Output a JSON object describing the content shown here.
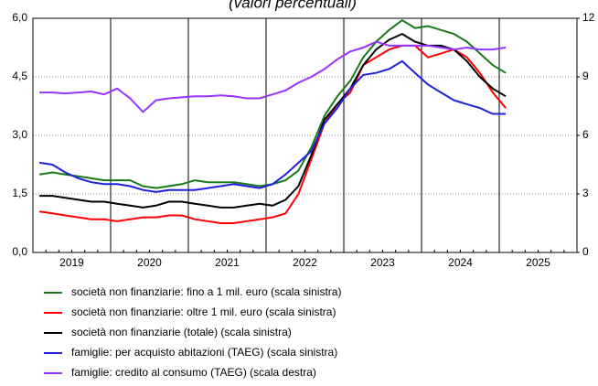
{
  "chart_data": {
    "type": "line",
    "title": "(valori percentuali)",
    "categories": [
      null,
      null,
      null,
      "2019",
      null,
      null,
      null,
      null,
      null,
      "2020",
      null,
      null,
      null,
      null,
      null,
      "2021",
      null,
      null,
      null,
      null,
      null,
      "2022",
      null,
      null,
      null,
      null,
      null,
      "2023",
      null,
      null,
      null,
      null,
      null,
      "2024",
      null,
      null,
      null,
      null,
      null,
      "2025",
      null,
      null
    ],
    "ylim": [
      0,
      6
    ],
    "yticks": [
      {
        "value": 0,
        "label": "0,0"
      },
      {
        "value": 1.5,
        "label": "1,5"
      },
      {
        "value": 3,
        "label": "3,0"
      },
      {
        "value": 4.5,
        "label": "4,5"
      },
      {
        "value": 6,
        "label": "6,0"
      }
    ],
    "y2lim": [
      0,
      12
    ],
    "y2ticks": [
      0,
      3,
      6,
      9,
      12
    ],
    "grid": true,
    "series": [
      {
        "name": "società non finanziarie: fino a 1 mil. euro (scala sinistra)",
        "color": "#1a7a1a",
        "values": [
          2.0,
          2.05,
          2.0,
          1.95,
          1.9,
          1.85,
          1.85,
          1.85,
          1.7,
          1.65,
          1.7,
          1.75,
          1.85,
          1.8,
          1.8,
          1.8,
          1.75,
          1.7,
          1.75,
          1.85,
          2.1,
          2.7,
          3.5,
          4.0,
          4.4,
          5.0,
          5.4,
          5.7,
          5.95,
          5.75,
          5.8,
          5.7,
          5.6,
          5.4,
          5.1,
          4.8,
          4.6,
          null,
          null,
          null,
          null,
          null
        ]
      },
      {
        "name": "società non finanziarie: oltre 1 mil. euro (scala sinistra)",
        "color": "#ff0000",
        "values": [
          1.05,
          1.0,
          0.95,
          0.9,
          0.85,
          0.85,
          0.8,
          0.85,
          0.9,
          0.9,
          0.95,
          0.95,
          0.85,
          0.8,
          0.75,
          0.75,
          0.8,
          0.85,
          0.9,
          1.0,
          1.5,
          2.4,
          3.3,
          3.8,
          4.1,
          4.8,
          5.0,
          5.2,
          5.3,
          5.3,
          5.0,
          5.1,
          5.2,
          5.0,
          4.6,
          4.1,
          3.7,
          null,
          null,
          null,
          null,
          null
        ]
      },
      {
        "name": "società non finanziarie (totale) (scala sinistra)",
        "color": "#000000",
        "values": [
          1.45,
          1.45,
          1.4,
          1.35,
          1.3,
          1.3,
          1.25,
          1.2,
          1.15,
          1.2,
          1.3,
          1.3,
          1.25,
          1.2,
          1.15,
          1.15,
          1.2,
          1.25,
          1.2,
          1.35,
          1.7,
          2.5,
          3.4,
          3.8,
          4.2,
          4.8,
          5.2,
          5.45,
          5.6,
          5.4,
          5.3,
          5.3,
          5.2,
          4.9,
          4.5,
          4.2,
          4.0,
          null,
          null,
          null,
          null,
          null
        ]
      },
      {
        "name": "famiglie: per acquisto abitazioni (TAEG) (scala sinistra)",
        "color": "#1f1fe0",
        "values": [
          2.3,
          2.25,
          2.05,
          1.9,
          1.8,
          1.75,
          1.75,
          1.7,
          1.6,
          1.55,
          1.6,
          1.6,
          1.6,
          1.65,
          1.7,
          1.75,
          1.7,
          1.65,
          1.75,
          2.0,
          2.3,
          2.6,
          3.3,
          3.7,
          4.2,
          4.55,
          4.6,
          4.7,
          4.9,
          4.6,
          4.3,
          4.1,
          3.9,
          3.8,
          3.7,
          3.55,
          3.55,
          null,
          null,
          null,
          null,
          null
        ]
      },
      {
        "name": "famiglie: credito al consumo (TAEG) (scala destra)",
        "color": "#9933ff",
        "axis": "y2",
        "values": [
          8.2,
          8.2,
          8.15,
          8.2,
          8.25,
          8.1,
          8.4,
          7.9,
          7.2,
          7.8,
          7.9,
          7.95,
          8.0,
          8.0,
          8.05,
          8.0,
          7.9,
          7.9,
          8.1,
          8.3,
          8.7,
          9.0,
          9.4,
          9.9,
          10.3,
          10.5,
          10.8,
          10.6,
          10.6,
          10.6,
          10.6,
          10.5,
          10.4,
          10.5,
          10.4,
          10.4,
          10.5,
          null,
          null,
          null,
          null,
          null
        ]
      }
    ]
  }
}
